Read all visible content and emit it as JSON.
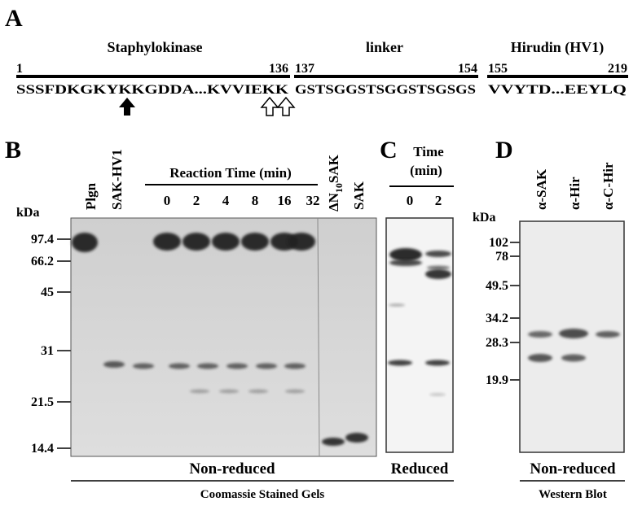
{
  "panel_a": {
    "letter": "A",
    "domains": [
      {
        "title": "Staphylokinase",
        "start": 1,
        "end": 136,
        "sequence": "SSSFDKGKYKKGDDA...KVVIEKK"
      },
      {
        "title": "linker",
        "start": 137,
        "end": 154,
        "sequence": "GSTSGGSTSGGSTSGSGS"
      },
      {
        "title": "Hirudin (HV1)",
        "start": 155,
        "end": 219,
        "sequence": "VVYTD...EEYLQ"
      }
    ]
  },
  "panel_b": {
    "letter": "B",
    "lanes": {
      "plgn": "Plgn",
      "sak_hv1": "SAK-HV1",
      "reaction_time": "Reaction Time (min)",
      "times": [
        0,
        2,
        4,
        8,
        16,
        32
      ],
      "dn10sak": {
        "prefix": "ΔN",
        "subscript": "10",
        "suffix": "SAK"
      },
      "sak": "SAK"
    },
    "unit": "kDa",
    "markers": [
      97.4,
      66.2,
      45,
      31,
      21.5,
      14.4
    ],
    "caption": "Non-reduced"
  },
  "panel_c": {
    "letter": "C",
    "time_label": [
      "Time",
      "(min)"
    ],
    "times": [
      0,
      2
    ],
    "caption": "Reduced"
  },
  "footer_bc": "Coomassie Stained Gels",
  "panel_d": {
    "letter": "D",
    "lanes": [
      "α-SAK",
      "α-Hir",
      "α-C-Hir"
    ],
    "unit": "kDa",
    "markers": [
      102,
      78,
      49.5,
      34.2,
      28.3,
      19.9
    ],
    "caption": "Non-reduced",
    "footer": "Western Blot"
  }
}
